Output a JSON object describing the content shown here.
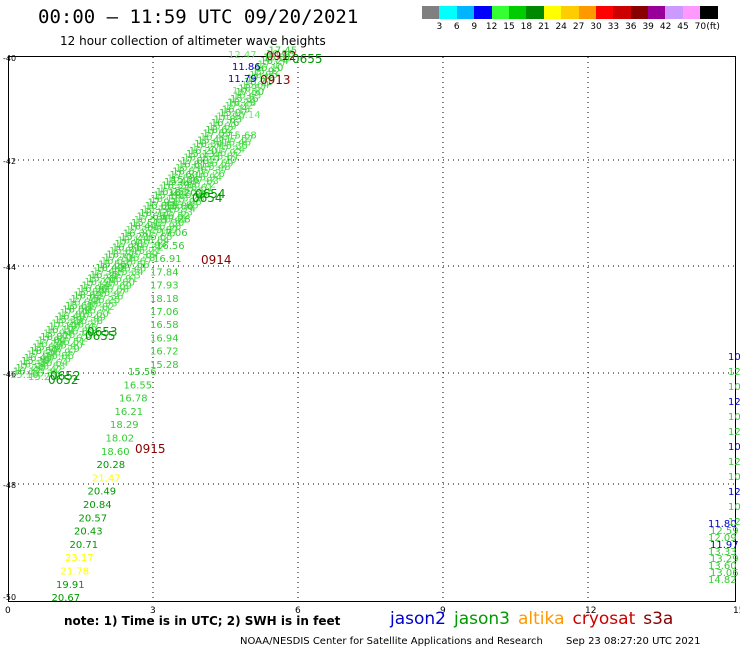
{
  "header": {
    "title": "00:00 – 11:59 UTC 09/20/2021",
    "subtitle": "12 hour collection of altimeter wave heights"
  },
  "legend": {
    "colors": [
      "#808080",
      "#00ffff",
      "#00b4ff",
      "#0000ff",
      "#33ff33",
      "#00cc00",
      "#008800",
      "#ffff00",
      "#ffcc00",
      "#ff9900",
      "#ff0000",
      "#cc0000",
      "#880000",
      "#990099",
      "#cc99ff",
      "#ff99ff",
      "#000000"
    ],
    "labels": [
      "3",
      "6",
      "9",
      "12",
      "15",
      "18",
      "21",
      "24",
      "27",
      "30",
      "33",
      "36",
      "39",
      "42",
      "45",
      "70",
      "(ft)"
    ]
  },
  "axes": {
    "x_ticks": [
      "0",
      "3",
      "6",
      "9",
      "12",
      "15"
    ],
    "y_ticks": [
      "-40",
      "-42",
      "-44",
      "-46",
      "-48",
      "-50"
    ]
  },
  "note": "note: 1) Time is in UTC; 2) SWH is in feet",
  "satellites": [
    {
      "name": "jason2",
      "color": "#0000cc"
    },
    {
      "name": "jason3",
      "color": "#009900"
    },
    {
      "name": "altika",
      "color": "#ff9900"
    },
    {
      "name": "cryosat",
      "color": "#cc0000"
    },
    {
      "name": "s3a",
      "color": "#880000"
    }
  ],
  "footer": {
    "credit": "NOAA/NESDIS Center for Satellite Applications and Research",
    "timestamp": "Sep 23 08:27:20 UTC 2021"
  },
  "tracks": {
    "lower_column": [
      "15.56",
      "16.55",
      "16.78",
      "16.21",
      "18.29",
      "18.02",
      "18.60",
      "20.28",
      "21.47",
      "20.49",
      "20.84",
      "20.57",
      "20.43",
      "20.71",
      "23.17",
      "21.78",
      "19.91",
      "20.67"
    ],
    "mid_column": [
      "15.36",
      "16.20",
      "15.86",
      "17.28",
      "17.06",
      "16.56",
      "16.91",
      "17.84",
      "17.93",
      "18.18",
      "17.06",
      "16.58",
      "16.94",
      "16.72",
      "15.28"
    ],
    "upper_column": [
      "12.47",
      "11.86",
      "11.79",
      "14.08",
      "12.15",
      "15.14"
    ],
    "right_edge": [
      "11.80",
      "12.59",
      "12.09",
      "11.97",
      "13.33",
      "13.29",
      "13.60",
      "13.06",
      "14.82"
    ],
    "time_labels": [
      "0912",
      "0655",
      "0913",
      "0654",
      "0654",
      "0914",
      "0653",
      "0655",
      "0652",
      "0652",
      "0915"
    ]
  }
}
